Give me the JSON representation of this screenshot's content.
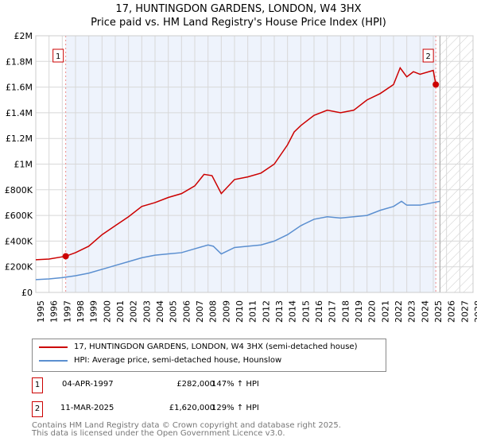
{
  "title": "17, HUNTINGDON GARDENS, LONDON, W4 3HX",
  "subtitle": "Price paid vs. HM Land Registry's House Price Index (HPI)",
  "chart_data": {
    "type": "line",
    "xlim": [
      1995,
      2028
    ],
    "ylim": [
      0,
      2000000
    ],
    "yticks": [
      {
        "v": 0,
        "l": "£0"
      },
      {
        "v": 200000,
        "l": "£200K"
      },
      {
        "v": 400000,
        "l": "£400K"
      },
      {
        "v": 600000,
        "l": "£600K"
      },
      {
        "v": 800000,
        "l": "£800K"
      },
      {
        "v": 1000000,
        "l": "£1M"
      },
      {
        "v": 1200000,
        "l": "£1.2M"
      },
      {
        "v": 1400000,
        "l": "£1.4M"
      },
      {
        "v": 1600000,
        "l": "£1.6M"
      },
      {
        "v": 1800000,
        "l": "£1.8M"
      },
      {
        "v": 2000000,
        "l": "£2M"
      }
    ],
    "xticks": [
      "1995",
      "1996",
      "1997",
      "1998",
      "1999",
      "2000",
      "2001",
      "2002",
      "2003",
      "2004",
      "2005",
      "2006",
      "2007",
      "2008",
      "2009",
      "2010",
      "2011",
      "2012",
      "2013",
      "2014",
      "2015",
      "2016",
      "2017",
      "2018",
      "2019",
      "2020",
      "2021",
      "2022",
      "2023",
      "2024",
      "2025",
      "2026",
      "2027",
      "2028"
    ],
    "forecast_start": 2025.5,
    "series": [
      {
        "name": "17, HUNTINGDON GARDENS, LONDON, W4 3HX (semi-detached house)",
        "color": "#cc0000",
        "x": [
          1995,
          1996,
          1997.26,
          1998,
          1999,
          2000,
          2001,
          2002,
          2003,
          2004,
          2005,
          2006,
          2007,
          2007.7,
          2008.3,
          2009,
          2010,
          2011,
          2012,
          2013,
          2014,
          2014.5,
          2015,
          2016,
          2017,
          2018,
          2019,
          2020,
          2021,
          2022,
          2022.5,
          2023,
          2023.5,
          2024,
          2025,
          2025.19
        ],
        "y": [
          255000,
          260000,
          282000,
          310000,
          360000,
          450000,
          520000,
          590000,
          670000,
          700000,
          740000,
          770000,
          830000,
          920000,
          910000,
          770000,
          880000,
          900000,
          930000,
          1000000,
          1150000,
          1250000,
          1300000,
          1380000,
          1420000,
          1400000,
          1420000,
          1500000,
          1550000,
          1620000,
          1750000,
          1680000,
          1720000,
          1700000,
          1730000,
          1620000
        ]
      },
      {
        "name": "HPI: Average price, semi-detached house, Hounslow",
        "color": "#5b8fd0",
        "x": [
          1995,
          1996,
          1997,
          1998,
          1999,
          2000,
          2001,
          2002,
          2003,
          2004,
          2005,
          2006,
          2007,
          2008,
          2008.4,
          2009,
          2010,
          2011,
          2012,
          2013,
          2014,
          2015,
          2016,
          2017,
          2018,
          2019,
          2020,
          2021,
          2022,
          2022.6,
          2023,
          2024,
          2025,
          2025.5
        ],
        "y": [
          100000,
          105000,
          115000,
          130000,
          150000,
          180000,
          210000,
          240000,
          270000,
          290000,
          300000,
          310000,
          340000,
          370000,
          360000,
          300000,
          350000,
          360000,
          370000,
          400000,
          450000,
          520000,
          570000,
          590000,
          580000,
          590000,
          600000,
          640000,
          670000,
          710000,
          680000,
          680000,
          700000,
          710000
        ]
      }
    ],
    "sales": [
      {
        "label": "1",
        "x": 1997.26,
        "y": 282000
      },
      {
        "label": "2",
        "x": 2025.19,
        "y": 1620000
      }
    ]
  },
  "legend": [
    "17, HUNTINGDON GARDENS, LONDON, W4 3HX (semi-detached house)",
    "HPI: Average price, semi-detached house, Hounslow"
  ],
  "sales_table": [
    {
      "n": "1",
      "date": "04-APR-1997",
      "price": "£282,000",
      "hpi": "147% ↑ HPI"
    },
    {
      "n": "2",
      "date": "11-MAR-2025",
      "price": "£1,620,000",
      "hpi": "129% ↑ HPI"
    }
  ],
  "footer": [
    "Contains HM Land Registry data © Crown copyright and database right 2025.",
    "This data is licensed under the Open Government Licence v3.0."
  ]
}
